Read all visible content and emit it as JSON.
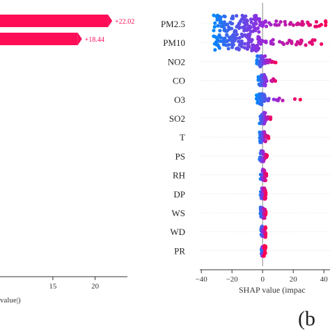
{
  "panel_label": "(b",
  "chart_data": [
    {
      "type": "bar",
      "orientation": "horizontal",
      "categories": [
        "PM2.5",
        "PM10"
      ],
      "values": [
        22.02,
        18.44
      ],
      "value_labels": [
        "+22.02",
        "+18.44"
      ],
      "xlabel": "value|)",
      "xticks": [
        15,
        20
      ],
      "xlim": [
        8.5,
        22.5
      ],
      "bar_color": "#ff0d57",
      "label_color": "#ff0d57"
    },
    {
      "type": "scatter",
      "subtype": "beeswarm",
      "features": [
        "PM2.5",
        "PM10",
        "NO2",
        "CO",
        "O3",
        "SO2",
        "T",
        "PS",
        "RH",
        "DP",
        "WS",
        "WD",
        "PR"
      ],
      "xlabel": "SHAP value (impac",
      "xticks": [
        -40,
        -20,
        0,
        20,
        40
      ],
      "xlim": [
        -41,
        44
      ],
      "reference_line": 0,
      "color_low": "#008bfb",
      "color_high": "#ff0051",
      "spread": [
        {
          "feature": "PM2.5",
          "min": -32,
          "max": 44
        },
        {
          "feature": "PM10",
          "min": -32,
          "max": 44
        },
        {
          "feature": "NO2",
          "min": -4,
          "max": 9
        },
        {
          "feature": "CO",
          "min": -3,
          "max": 10
        },
        {
          "feature": "O3",
          "min": -4,
          "max": 25
        },
        {
          "feature": "SO2",
          "min": -2,
          "max": 6
        },
        {
          "feature": "T",
          "min": -2,
          "max": 4
        },
        {
          "feature": "PS",
          "min": -2,
          "max": 3
        },
        {
          "feature": "RH",
          "min": -1.5,
          "max": 2.5
        },
        {
          "feature": "DP",
          "min": -1.5,
          "max": 2
        },
        {
          "feature": "WS",
          "min": -1.5,
          "max": 2
        },
        {
          "feature": "WD",
          "min": -1,
          "max": 1.5
        },
        {
          "feature": "PR",
          "min": -0.8,
          "max": 0.8
        }
      ]
    }
  ]
}
